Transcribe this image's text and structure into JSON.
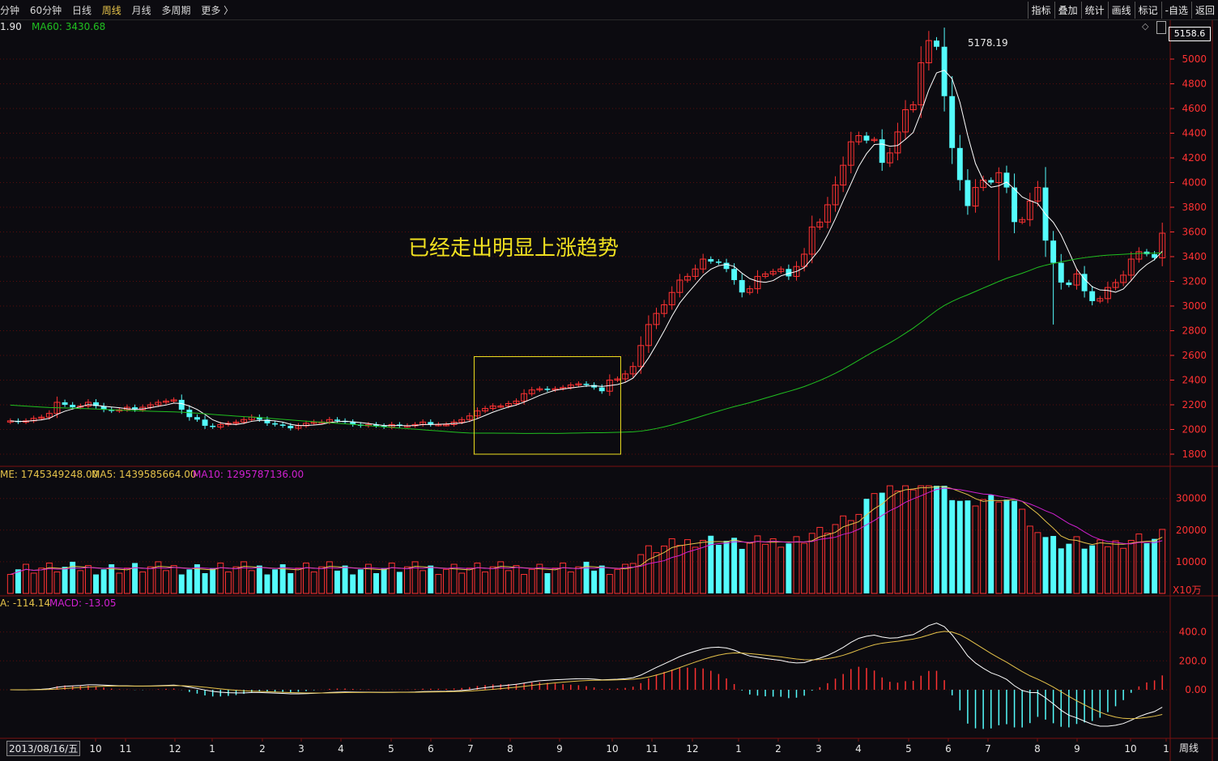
{
  "toolbar": {
    "periods": [
      "分钟",
      "60分钟",
      "日线",
      "周线",
      "月线",
      "多周期",
      "更多 〉"
    ],
    "active_period": "周线",
    "actions": [
      "指标",
      "叠加",
      "统计",
      "画线",
      "标记",
      "-自选",
      "返回"
    ]
  },
  "main_panel": {
    "ma_partial": "1.90",
    "ma60_label": "MA60: 3430.68",
    "high_marker": "5178.19",
    "price_box": "5158.6",
    "y_ticks": [
      "5000",
      "4800",
      "4600",
      "4400",
      "4200",
      "4000",
      "3800",
      "3600",
      "3400",
      "3200",
      "3000",
      "2800",
      "2600",
      "2400",
      "2200",
      "2000",
      "1800"
    ],
    "annotation": "已经走出明显上涨趋势"
  },
  "volume_panel": {
    "vol_label": "ME: 1745349248.00",
    "ma5_label": "MA5: 1439585664.00",
    "ma10_label": "MA10: 1295787136.00",
    "y_ticks": [
      "30000",
      "20000",
      "10000"
    ],
    "unit": "X10万"
  },
  "macd_panel": {
    "dea_label": "A: -114.14",
    "macd_label": "MACD: -13.05",
    "y_ticks": [
      "400.0",
      "200.0",
      "0.00"
    ]
  },
  "x_axis": {
    "start_date": "2013/08/16/五",
    "labels": [
      "10",
      "11",
      "12",
      "1",
      "2",
      "3",
      "4",
      "5",
      "6",
      "7",
      "8",
      "9",
      "10",
      "11",
      "12",
      "1",
      "2",
      "3",
      "4",
      "5",
      "6",
      "7",
      "8",
      "9",
      "10",
      "1"
    ],
    "period_tag": "周线"
  },
  "chart_data": {
    "type": "candlestick",
    "colors": {
      "up": "#ff3232",
      "down": "#54fcfc",
      "ma5": "#ffffff",
      "ma60": "#20c020",
      "vol_ma5": "#e6c34a",
      "vol_ma10": "#d020d0",
      "dif": "#ffffff",
      "dea": "#e6c34a"
    },
    "closes": [
      2070,
      2060,
      2070,
      2090,
      2100,
      2130,
      2220,
      2200,
      2180,
      2190,
      2220,
      2190,
      2160,
      2150,
      2160,
      2180,
      2160,
      2180,
      2200,
      2220,
      2230,
      2240,
      2160,
      2100,
      2080,
      2030,
      2020,
      2040,
      2050,
      2060,
      2080,
      2100,
      2080,
      2050,
      2040,
      2030,
      2010,
      2030,
      2050,
      2060,
      2060,
      2080,
      2070,
      2060,
      2040,
      2030,
      2040,
      2030,
      2020,
      2040,
      2030,
      2030,
      2040,
      2060,
      2040,
      2040,
      2040,
      2060,
      2080,
      2110,
      2150,
      2170,
      2190,
      2190,
      2210,
      2230,
      2290,
      2320,
      2330,
      2320,
      2330,
      2340,
      2360,
      2370,
      2360,
      2340,
      2310,
      2400,
      2410,
      2450,
      2510,
      2680,
      2850,
      2940,
      3010,
      3110,
      3210,
      3240,
      3300,
      3380,
      3360,
      3350,
      3300,
      3210,
      3110,
      3140,
      3240,
      3260,
      3280,
      3300,
      3240,
      3320,
      3420,
      3640,
      3680,
      3820,
      3980,
      4140,
      4330,
      4380,
      4340,
      4350,
      4160,
      4240,
      4410,
      4590,
      4630,
      4970,
      5150,
      5100,
      4700,
      4280,
      4020,
      3810,
      3960,
      4020,
      4000,
      4080,
      3960,
      3680,
      3700,
      3850,
      3960,
      3530,
      3350,
      3190,
      3170,
      3260,
      3120,
      3040,
      3060,
      3150,
      3190,
      3250,
      3380,
      3440,
      3420,
      3390,
      3590
    ],
    "ma60_end": 3430.68,
    "high": 5178.19,
    "volume_ma5": 1439585664.0,
    "volume_ma10": 1295787136.0,
    "dea": -114.14,
    "macd": -13.05,
    "xlabel": "",
    "ylabel": ""
  }
}
